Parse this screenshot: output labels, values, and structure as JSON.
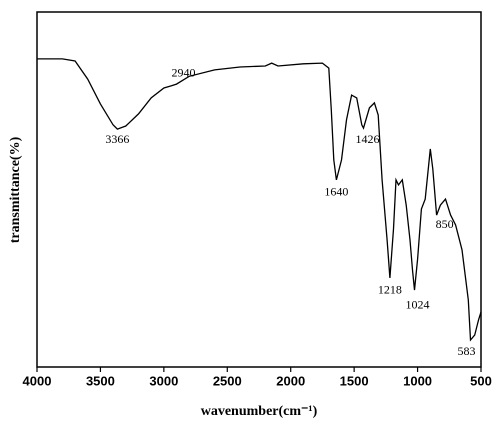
{
  "chart_data": {
    "type": "line",
    "xlabel": "wavenumber(cm⁻¹)",
    "ylabel": "transmittance(%)",
    "xlim": [
      4000,
      500
    ],
    "ylim": [
      0,
      100
    ],
    "xticks": [
      4000,
      3500,
      3000,
      2500,
      2000,
      1500,
      1000,
      500
    ],
    "x": [
      4000,
      3800,
      3700,
      3600,
      3500,
      3400,
      3366,
      3300,
      3200,
      3100,
      3000,
      2940,
      2900,
      2800,
      2600,
      2400,
      2200,
      2150,
      2100,
      1900,
      1750,
      1700,
      1680,
      1660,
      1640,
      1600,
      1560,
      1520,
      1480,
      1440,
      1426,
      1380,
      1340,
      1310,
      1280,
      1240,
      1218,
      1190,
      1170,
      1150,
      1120,
      1090,
      1060,
      1040,
      1024,
      1000,
      970,
      940,
      900,
      880,
      850,
      820,
      780,
      740,
      700,
      650,
      600,
      583,
      550,
      520,
      500
    ],
    "series": [
      {
        "color": "#000000",
        "values": [
          86.8,
          86.8,
          86.2,
          81.1,
          74.1,
          68.2,
          67.0,
          67.9,
          71.3,
          75.8,
          78.6,
          79.2,
          79.7,
          81.9,
          83.7,
          84.5,
          84.8,
          85.6,
          84.8,
          85.4,
          85.6,
          84.2,
          72.4,
          58.3,
          52.7,
          58.3,
          69.6,
          76.6,
          75.8,
          68.2,
          67.3,
          73.0,
          74.4,
          71.0,
          52.7,
          35.8,
          25.1,
          38.9,
          52.7,
          51.3,
          52.7,
          45.6,
          35.8,
          27.3,
          21.7,
          30.4,
          44.5,
          47.3,
          61.4,
          55.8,
          42.8,
          45.6,
          47.3,
          42.8,
          40.0,
          33.0,
          18.9,
          7.6,
          9.0,
          13.2,
          15.5
        ]
      }
    ],
    "peaks": [
      3366,
      2940,
      1640,
      1426,
      1218,
      1024,
      850,
      583
    ]
  }
}
